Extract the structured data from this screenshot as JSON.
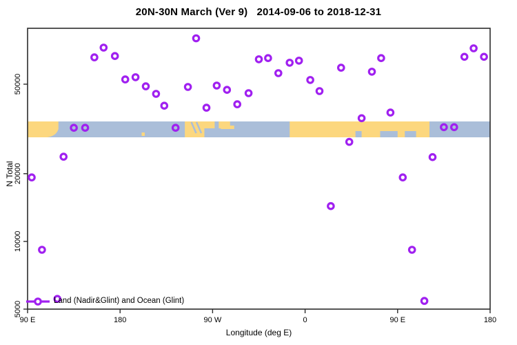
{
  "title": "20N-30N March (Ver 9)   2014-09-06 to 2018-12-31",
  "colors": {
    "point_stroke": "#A020F0",
    "ocean_band": "#aabed9",
    "land_band": "#fcd77e",
    "axis": "#2b2b2b",
    "text": "#000000"
  },
  "legend": {
    "label": "Land (Nadir&Glint) and Ocean (Glint)",
    "marker": "open-circle-on-line"
  },
  "chart_data": {
    "type": "scatter",
    "title": "20N-30N March (Ver 9)   2014-09-06 to 2018-12-31",
    "xlabel": "Longitude (deg E)",
    "ylabel": "N Total",
    "grid": "off",
    "legend_position": "bottom-left-inside",
    "x_axis": {
      "units": "deg E (wrapping eastward from 90E)",
      "range": [
        90,
        540
      ],
      "ticks": [
        {
          "lon": 90,
          "label": "90 E"
        },
        {
          "lon": 180,
          "label": "180"
        },
        {
          "lon": 270,
          "label": "90 W"
        },
        {
          "lon": 360,
          "label": "0"
        },
        {
          "lon": 450,
          "label": "90 E"
        },
        {
          "lon": 540,
          "label": "180"
        }
      ]
    },
    "y_axis": {
      "scale": "log",
      "range": [
        5000,
        88000
      ],
      "ticks": [
        {
          "value": 5000,
          "label": "5000"
        },
        {
          "value": 10000,
          "label": "10000"
        },
        {
          "value": 20000,
          "label": "20000"
        },
        {
          "value": 50000,
          "label": "50000"
        }
      ]
    },
    "points": [
      [
        94,
        19250
      ],
      [
        104,
        9180
      ],
      [
        119,
        5550
      ],
      [
        125,
        23800
      ],
      [
        135,
        32000
      ],
      [
        146,
        32000
      ],
      [
        155,
        65800
      ],
      [
        164,
        72700
      ],
      [
        175,
        66700
      ],
      [
        185,
        52500
      ],
      [
        195,
        53700
      ],
      [
        205,
        48900
      ],
      [
        215,
        45300
      ],
      [
        223,
        40100
      ],
      [
        234,
        32000
      ],
      [
        246,
        48600
      ],
      [
        254,
        80000
      ],
      [
        264,
        39300
      ],
      [
        274,
        49300
      ],
      [
        284,
        47200
      ],
      [
        294,
        40700
      ],
      [
        305,
        45600
      ],
      [
        315,
        64500
      ],
      [
        324,
        65300
      ],
      [
        334,
        56000
      ],
      [
        345,
        62300
      ],
      [
        354,
        63600
      ],
      [
        365,
        52200
      ],
      [
        374,
        46600
      ],
      [
        385,
        14350
      ],
      [
        395,
        59200
      ],
      [
        403,
        27700
      ],
      [
        415,
        35300
      ],
      [
        425,
        56800
      ],
      [
        434,
        65300
      ],
      [
        443,
        37400
      ],
      [
        455,
        19250
      ],
      [
        464,
        9180
      ],
      [
        476,
        5440
      ],
      [
        484,
        23700
      ],
      [
        495,
        32200
      ],
      [
        505,
        32200
      ],
      [
        515,
        66200
      ],
      [
        524,
        72200
      ],
      [
        534,
        66200
      ]
    ],
    "map_band": {
      "description": "20N-30N latitude world land/ocean strip drawn across plot",
      "y_value_range": [
        29000,
        34500
      ],
      "land_segments": [
        {
          "from": 90,
          "to": 120,
          "part": "full",
          "round_br": true
        },
        {
          "from": 201,
          "to": 204,
          "part": "speck"
        },
        {
          "from": 243,
          "to": 262,
          "part": "full"
        },
        {
          "from": 258,
          "to": 272,
          "part": "top"
        },
        {
          "from": 276,
          "to": 287,
          "part": "top"
        },
        {
          "from": 278,
          "to": 291,
          "part": "mid"
        },
        {
          "from": 345,
          "to": 481,
          "part": "full"
        }
      ],
      "water_details": [
        {
          "from": 409,
          "to": 415,
          "part": "bottom"
        },
        {
          "from": 433,
          "to": 450,
          "part": "bottom"
        },
        {
          "from": 457,
          "to": 468,
          "part": "bottom"
        },
        {
          "at": 252,
          "part": "streak"
        },
        {
          "at": 257,
          "part": "streak"
        }
      ]
    }
  }
}
